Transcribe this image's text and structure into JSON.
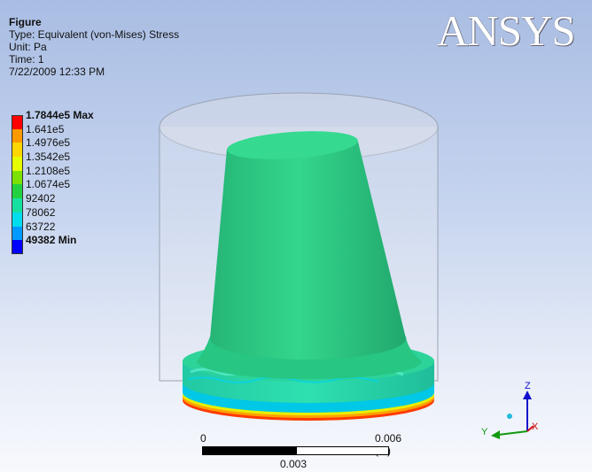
{
  "info": {
    "title": "Figure",
    "type": "Type: Equivalent (von-Mises) Stress",
    "unit": "Unit: Pa",
    "time": "Time: 1",
    "date": "7/22/2009 12:33 PM"
  },
  "brand": "ANSYS",
  "legend": {
    "entries": [
      {
        "label": "1.7844e5 Max",
        "color": "#ff0000",
        "bold": true
      },
      {
        "label": "1.641e5",
        "color": "#ff9900",
        "bold": false
      },
      {
        "label": "1.4976e5",
        "color": "#ffd700",
        "bold": false
      },
      {
        "label": "1.3542e5",
        "color": "#e6ff00",
        "bold": false
      },
      {
        "label": "1.2108e5",
        "color": "#7ce000",
        "bold": false
      },
      {
        "label": "1.0674e5",
        "color": "#22d13f",
        "bold": false
      },
      {
        "label": "92402",
        "color": "#16e0a0",
        "bold": false
      },
      {
        "label": "78062",
        "color": "#00ddee",
        "bold": false
      },
      {
        "label": "63722",
        "color": "#0099ff",
        "bold": false
      },
      {
        "label": "49382 Min",
        "color": "#0000ff",
        "bold": true
      }
    ]
  },
  "scale": {
    "left": "0",
    "right": "0.006 (m)",
    "mid": "0.003"
  },
  "triad": {
    "z": "Z",
    "y": "Y",
    "x": "X"
  },
  "colors": {
    "part": "#2dcc86",
    "background_top": "#a9bde3",
    "background_bottom": "#f7f9fd"
  }
}
